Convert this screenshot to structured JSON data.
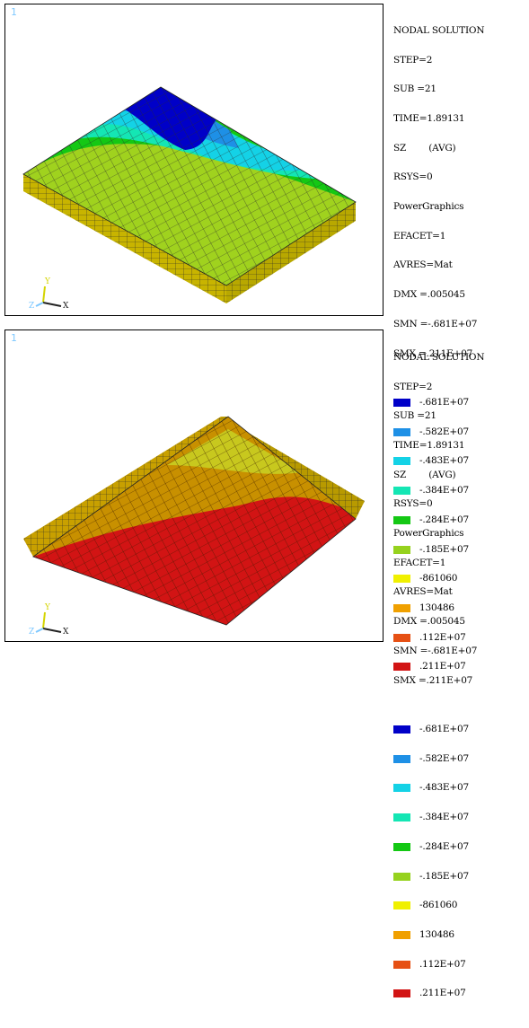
{
  "panels": [
    {
      "window_number": "1",
      "info": {
        "title": "NODAL SOLUTION",
        "step": "STEP=2",
        "sub": "SUB =21",
        "time": "TIME=1.89131",
        "sz": "SZ        (AVG)",
        "rsys": "RSYS=0",
        "graphics": "PowerGraphics",
        "efacet": "EFACET=1",
        "avres": "AVRES=Mat",
        "dmx": "DMX =.005045",
        "smn": "SMN =-.681E+07",
        "smx": "SMX =.211E+07"
      },
      "legend": [
        {
          "label": "-.681E+07",
          "color": "#0000c8"
        },
        {
          "label": "-.582E+07",
          "color": "#1e90e6"
        },
        {
          "label": "-.483E+07",
          "color": "#14d2e6"
        },
        {
          "label": "-.384E+07",
          "color": "#14e6b4"
        },
        {
          "label": "-.284E+07",
          "color": "#14c814"
        },
        {
          "label": "-.185E+07",
          "color": "#96d21e"
        },
        {
          "label": "-861060",
          "color": "#f0f000"
        },
        {
          "label": "130486",
          "color": "#f0a000"
        },
        {
          "label": ".112E+07",
          "color": "#e65014"
        },
        {
          "label": ".211E+07",
          "color": "#d21414"
        }
      ],
      "triad": {
        "y": "Y",
        "z": "Z",
        "x": "X"
      }
    },
    {
      "window_number": "1",
      "info": {
        "title": "NODAL SOLUTION",
        "step": "STEP=2",
        "sub": "SUB =21",
        "time": "TIME=1.89131",
        "sz": "SZ        (AVG)",
        "rsys": "RSYS=0",
        "graphics": "PowerGraphics",
        "efacet": "EFACET=1",
        "avres": "AVRES=Mat",
        "dmx": "DMX =.005045",
        "smn": "SMN =-.681E+07",
        "smx": "SMX =.211E+07"
      },
      "legend": [
        {
          "label": "-.681E+07",
          "color": "#0000c8"
        },
        {
          "label": "-.582E+07",
          "color": "#1e90e6"
        },
        {
          "label": "-.483E+07",
          "color": "#14d2e6"
        },
        {
          "label": "-.384E+07",
          "color": "#14e6b4"
        },
        {
          "label": "-.284E+07",
          "color": "#14c814"
        },
        {
          "label": "-.185E+07",
          "color": "#96d21e"
        },
        {
          "label": "-861060",
          "color": "#f0f000"
        },
        {
          "label": "130486",
          "color": "#f0a000"
        },
        {
          "label": ".112E+07",
          "color": "#e65014"
        },
        {
          "label": ".211E+07",
          "color": "#d21414"
        }
      ],
      "triad": {
        "y": "Y",
        "z": "Z",
        "x": "X"
      }
    }
  ]
}
